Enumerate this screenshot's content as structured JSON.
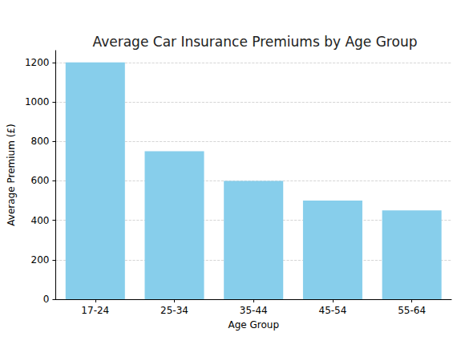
{
  "chart_data": {
    "type": "bar",
    "title": "Average Car Insurance Premiums by Age Group",
    "x_label": "Age Group",
    "y_label": "Average Premium (£)",
    "categories": [
      "17-24",
      "25-34",
      "35-44",
      "45-54",
      "55-64"
    ],
    "values": [
      1200,
      750,
      600,
      500,
      450
    ],
    "color": "#87ceeb",
    "ylim": [
      0,
      1260
    ],
    "yticks": [
      0,
      200,
      400,
      600,
      800,
      1000,
      1200
    ],
    "grid": true
  }
}
